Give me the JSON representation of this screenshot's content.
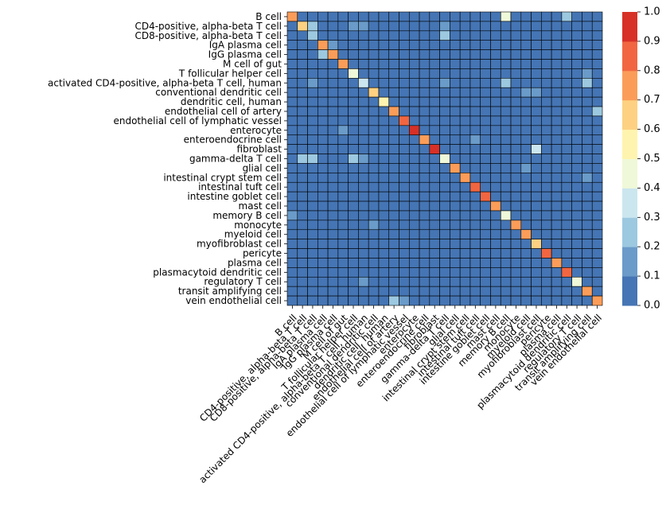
{
  "chart_data": {
    "type": "heatmap",
    "title": "",
    "xlabel": "",
    "ylabel": "",
    "labels": [
      "B cell",
      "CD4-positive, alpha-beta T cell",
      "CD8-positive, alpha-beta T cell",
      "IgA plasma cell",
      "IgG plasma cell",
      "M cell of gut",
      "T follicular helper cell",
      "activated CD4-positive, alpha-beta T cell, human",
      "conventional dendritic cell",
      "dendritic cell, human",
      "endothelial cell of artery",
      "endothelial cell of lymphatic vessel",
      "enterocyte",
      "enteroendocrine cell",
      "fibroblast",
      "gamma-delta T cell",
      "glial cell",
      "intestinal crypt stem cell",
      "intestinal tuft cell",
      "intestine goblet cell",
      "mast cell",
      "memory B cell",
      "monocyte",
      "myeloid cell",
      "myofibroblast cell",
      "pericyte",
      "plasma cell",
      "plasmacytoid dendritic cell",
      "regulatory T cell",
      "transit amplifying cell",
      "vein endothelial cell"
    ],
    "diagonal": [
      0.75,
      0.65,
      0.25,
      0.75,
      0.75,
      0.75,
      0.45,
      0.35,
      0.65,
      0.55,
      0.75,
      0.85,
      0.95,
      0.75,
      0.95,
      0.45,
      0.75,
      0.75,
      0.85,
      0.85,
      0.75,
      0.45,
      0.75,
      0.75,
      0.65,
      0.85,
      0.75,
      0.85,
      0.45,
      0.75,
      0.75
    ],
    "off_diagonal": [
      {
        "row": 0,
        "col": 21,
        "value": 0.45
      },
      {
        "row": 0,
        "col": 27,
        "value": 0.25
      },
      {
        "row": 1,
        "col": 2,
        "value": 0.25
      },
      {
        "row": 1,
        "col": 6,
        "value": 0.15
      },
      {
        "row": 1,
        "col": 7,
        "value": 0.15
      },
      {
        "row": 1,
        "col": 15,
        "value": 0.15
      },
      {
        "row": 2,
        "col": 15,
        "value": 0.25
      },
      {
        "row": 3,
        "col": 4,
        "value": 0.15
      },
      {
        "row": 4,
        "col": 3,
        "value": 0.25
      },
      {
        "row": 6,
        "col": 29,
        "value": 0.15
      },
      {
        "row": 7,
        "col": 2,
        "value": 0.15
      },
      {
        "row": 7,
        "col": 15,
        "value": 0.15
      },
      {
        "row": 7,
        "col": 21,
        "value": 0.25
      },
      {
        "row": 7,
        "col": 29,
        "value": 0.25
      },
      {
        "row": 8,
        "col": 23,
        "value": 0.15
      },
      {
        "row": 8,
        "col": 24,
        "value": 0.15
      },
      {
        "row": 10,
        "col": 30,
        "value": 0.25
      },
      {
        "row": 12,
        "col": 5,
        "value": 0.15
      },
      {
        "row": 13,
        "col": 18,
        "value": 0.15
      },
      {
        "row": 14,
        "col": 24,
        "value": 0.35
      },
      {
        "row": 15,
        "col": 1,
        "value": 0.25
      },
      {
        "row": 15,
        "col": 2,
        "value": 0.25
      },
      {
        "row": 15,
        "col": 6,
        "value": 0.25
      },
      {
        "row": 15,
        "col": 7,
        "value": 0.15
      },
      {
        "row": 16,
        "col": 23,
        "value": 0.15
      },
      {
        "row": 17,
        "col": 29,
        "value": 0.15
      },
      {
        "row": 21,
        "col": 0,
        "value": 0.15
      },
      {
        "row": 22,
        "col": 8,
        "value": 0.15
      },
      {
        "row": 28,
        "col": 7,
        "value": 0.15
      },
      {
        "row": 30,
        "col": 10,
        "value": 0.25
      },
      {
        "row": 30,
        "col": 11,
        "value": 0.15
      }
    ],
    "vmin": 0.0,
    "vmax": 1.0,
    "colormap": [
      "#4575b4",
      "#6a9bc9",
      "#9cc8e0",
      "#cbe6ef",
      "#eff8d8",
      "#fef4af",
      "#fdd181",
      "#fb9d59",
      "#f16641",
      "#d73027"
    ],
    "colorbar_ticks": [
      "0.0",
      "0.1",
      "0.2",
      "0.3",
      "0.4",
      "0.5",
      "0.6",
      "0.7",
      "0.8",
      "0.9",
      "1.0"
    ],
    "gridline_color": "#000000"
  }
}
